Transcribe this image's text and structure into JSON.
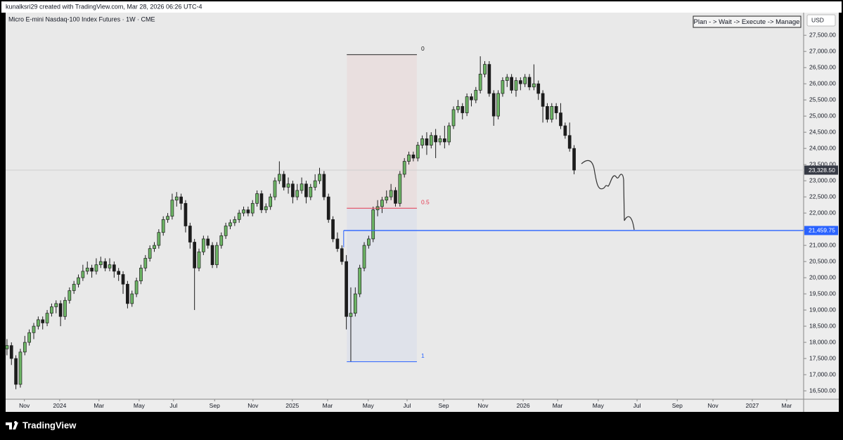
{
  "chart_data": {
    "type": "candlestick",
    "header": "kunalksri29 created with TradingView.com, Mar 28, 2026 06:26 UTC-4",
    "title": "Micro E-mini Nasdaq-100 Index Futures · 1W · CME",
    "note": "Plan - > Wait -> Execute -> Manage",
    "currency": "USD",
    "watermark": "TradingView",
    "up_color": "#6db565",
    "down_color": "#1c1c1c",
    "ylim": [
      16240,
      28200
    ],
    "xlim": [
      -0.3,
      178.4
    ],
    "yticks": [
      {
        "value": 16500,
        "label": "16,500.00"
      },
      {
        "value": 17000,
        "label": "17,000.00"
      },
      {
        "value": 17500,
        "label": "17,500.00"
      },
      {
        "value": 18000,
        "label": "18,000.00"
      },
      {
        "value": 18500,
        "label": "18,500.00"
      },
      {
        "value": 19000,
        "label": "19,000.00"
      },
      {
        "value": 19500,
        "label": "19,500.00"
      },
      {
        "value": 20000,
        "label": "20,000.00"
      },
      {
        "value": 20500,
        "label": "20,500.00"
      },
      {
        "value": 21000,
        "label": "21,000.00"
      },
      {
        "value": 21500,
        "label": "21,500.00"
      },
      {
        "value": 22000,
        "label": "22,000.00"
      },
      {
        "value": 22500,
        "label": "22,500.00"
      },
      {
        "value": 23000,
        "label": "23,000.00"
      },
      {
        "value": 23500,
        "label": "23,500.00"
      },
      {
        "value": 24000,
        "label": "24,000.00"
      },
      {
        "value": 24500,
        "label": "24,500.00"
      },
      {
        "value": 25000,
        "label": "25,000.00"
      },
      {
        "value": 25500,
        "label": "25,500.00"
      },
      {
        "value": 26000,
        "label": "26,000.00"
      },
      {
        "value": 26500,
        "label": "26,500.00"
      },
      {
        "value": 27000,
        "label": "27,000.00"
      },
      {
        "value": 27500,
        "label": "27,500.00"
      }
    ],
    "xticks": [
      {
        "value": 3.9,
        "label": "Nov"
      },
      {
        "value": 11.8,
        "label": "2024"
      },
      {
        "value": 20.6,
        "label": "Mar"
      },
      {
        "value": 29.6,
        "label": "May"
      },
      {
        "value": 37.3,
        "label": "Jul"
      },
      {
        "value": 46.5,
        "label": "Sep"
      },
      {
        "value": 55.1,
        "label": "Nov"
      },
      {
        "value": 63.9,
        "label": "2025"
      },
      {
        "value": 71.8,
        "label": "Mar"
      },
      {
        "value": 80.9,
        "label": "May"
      },
      {
        "value": 89.6,
        "label": "Jul"
      },
      {
        "value": 97.8,
        "label": "Sep"
      },
      {
        "value": 106.6,
        "label": "Nov"
      },
      {
        "value": 115.6,
        "label": "2026"
      },
      {
        "value": 123.3,
        "label": "Mar"
      },
      {
        "value": 132.4,
        "label": "May"
      },
      {
        "value": 141.1,
        "label": "Jul"
      },
      {
        "value": 150.1,
        "label": "Sep"
      },
      {
        "value": 158.1,
        "label": "Nov"
      },
      {
        "value": 166.9,
        "label": "2027"
      },
      {
        "value": 174.6,
        "label": "Mar"
      }
    ],
    "last_price": {
      "value": 23328.5,
      "label": "23,328.50"
    },
    "level": {
      "value": 21459.75,
      "label": "21,459.75",
      "start": 75.4,
      "color": "#2962ff"
    },
    "fib": {
      "high": 26900,
      "low": 17400,
      "start": 76.1,
      "end": 91.8,
      "levels": [
        0,
        0.5,
        1
      ],
      "colors": [
        "#222222",
        "#e53950",
        "#2962ff"
      ]
    },
    "ohlc": [
      [
        17800,
        18100,
        17600,
        17900
      ],
      [
        17900,
        18000,
        17300,
        17500
      ],
      [
        17500,
        17600,
        16550,
        16700
      ],
      [
        16700,
        17800,
        16600,
        17700
      ],
      [
        17700,
        18200,
        17600,
        18000
      ],
      [
        18000,
        18400,
        17900,
        18300
      ],
      [
        18300,
        18600,
        18100,
        18500
      ],
      [
        18500,
        18800,
        18400,
        18700
      ],
      [
        18700,
        18800,
        18400,
        18600
      ],
      [
        18600,
        19000,
        18500,
        18900
      ],
      [
        18900,
        19200,
        18800,
        19100
      ],
      [
        19100,
        19300,
        18900,
        19200
      ],
      [
        19200,
        19300,
        18500,
        18800
      ],
      [
        18800,
        19400,
        18700,
        19300
      ],
      [
        19300,
        19700,
        19200,
        19600
      ],
      [
        19600,
        19900,
        19500,
        19800
      ],
      [
        19800,
        20100,
        19700,
        20000
      ],
      [
        20000,
        20400,
        19900,
        20200
      ],
      [
        20200,
        20500,
        20100,
        20300
      ],
      [
        20300,
        20400,
        20000,
        20200
      ],
      [
        20200,
        20600,
        20100,
        20400
      ],
      [
        20400,
        20650,
        20300,
        20500
      ],
      [
        20500,
        20600,
        20200,
        20300
      ],
      [
        20300,
        20600,
        20200,
        20400
      ],
      [
        20400,
        20500,
        20000,
        20200
      ],
      [
        20200,
        20300,
        19900,
        20100
      ],
      [
        20100,
        20200,
        19500,
        19800
      ],
      [
        19800,
        19900,
        19050,
        19200
      ],
      [
        19200,
        19600,
        19100,
        19500
      ],
      [
        19500,
        20000,
        19400,
        19900
      ],
      [
        19900,
        20400,
        19800,
        20300
      ],
      [
        20300,
        20700,
        20200,
        20600
      ],
      [
        20600,
        21000,
        20500,
        20900
      ],
      [
        20900,
        21100,
        20800,
        21000
      ],
      [
        21000,
        21500,
        20900,
        21400
      ],
      [
        21400,
        21900,
        21300,
        21800
      ],
      [
        21800,
        22000,
        21700,
        21900
      ],
      [
        21900,
        22600,
        21800,
        22400
      ],
      [
        22400,
        22650,
        22200,
        22500
      ],
      [
        22500,
        22600,
        22100,
        22300
      ],
      [
        22300,
        22400,
        21400,
        21600
      ],
      [
        21600,
        21700,
        20900,
        21100
      ],
      [
        21100,
        21200,
        19000,
        20300
      ],
      [
        20300,
        20900,
        20200,
        20800
      ],
      [
        20800,
        21300,
        20700,
        21200
      ],
      [
        21200,
        21300,
        20900,
        21000
      ],
      [
        21000,
        21100,
        20300,
        20400
      ],
      [
        20400,
        21100,
        20300,
        21000
      ],
      [
        21000,
        21400,
        20900,
        21300
      ],
      [
        21300,
        21700,
        21200,
        21600
      ],
      [
        21600,
        21800,
        21500,
        21700
      ],
      [
        21700,
        21900,
        21600,
        21800
      ],
      [
        21800,
        22100,
        21700,
        22000
      ],
      [
        22000,
        22200,
        21900,
        22100
      ],
      [
        22100,
        22200,
        21900,
        22000
      ],
      [
        22000,
        22400,
        21900,
        22300
      ],
      [
        22300,
        22700,
        22200,
        22600
      ],
      [
        22600,
        22700,
        22000,
        22100
      ],
      [
        22100,
        22300,
        22000,
        22200
      ],
      [
        22200,
        22600,
        22100,
        22500
      ],
      [
        22500,
        23100,
        22400,
        23000
      ],
      [
        23000,
        23600,
        22900,
        23200
      ],
      [
        23200,
        23300,
        22700,
        22800
      ],
      [
        22800,
        23100,
        22600,
        22900
      ],
      [
        22900,
        23000,
        22300,
        22500
      ],
      [
        22500,
        22900,
        22400,
        22700
      ],
      [
        22700,
        23100,
        22600,
        22900
      ],
      [
        22900,
        23000,
        22300,
        22500
      ],
      [
        22500,
        22900,
        22400,
        22800
      ],
      [
        22800,
        23200,
        22700,
        23000
      ],
      [
        23000,
        23400,
        22900,
        23200
      ],
      [
        23200,
        23300,
        22400,
        22500
      ],
      [
        22500,
        22600,
        21700,
        21800
      ],
      [
        21800,
        21900,
        21100,
        21200
      ],
      [
        21200,
        21400,
        20800,
        20900
      ],
      [
        20900,
        21000,
        20400,
        20500
      ],
      [
        20500,
        20700,
        18400,
        18800
      ],
      [
        18800,
        19700,
        17400,
        18900
      ],
      [
        18900,
        19700,
        18800,
        19500
      ],
      [
        19500,
        20400,
        19400,
        20300
      ],
      [
        20300,
        21100,
        20200,
        21000
      ],
      [
        21000,
        21300,
        20900,
        21200
      ],
      [
        21200,
        22200,
        21100,
        22100
      ],
      [
        22100,
        22400,
        21900,
        22200
      ],
      [
        22200,
        22500,
        22000,
        22400
      ],
      [
        22400,
        22700,
        22300,
        22500
      ],
      [
        22500,
        22900,
        22400,
        22700
      ],
      [
        22700,
        22800,
        22200,
        22300
      ],
      [
        22300,
        23300,
        22200,
        23200
      ],
      [
        23200,
        23700,
        23100,
        23600
      ],
      [
        23600,
        23900,
        23500,
        23800
      ],
      [
        23800,
        23900,
        23600,
        23700
      ],
      [
        23700,
        24200,
        23600,
        24100
      ],
      [
        24100,
        24400,
        24000,
        24300
      ],
      [
        24300,
        24500,
        23800,
        24100
      ],
      [
        24100,
        24500,
        24000,
        24400
      ],
      [
        24400,
        24600,
        23700,
        24200
      ],
      [
        24200,
        24400,
        24100,
        24300
      ],
      [
        24300,
        24700,
        24000,
        24200
      ],
      [
        24200,
        24800,
        24100,
        24700
      ],
      [
        24700,
        25300,
        24600,
        25200
      ],
      [
        25200,
        25500,
        25100,
        25300
      ],
      [
        25300,
        25400,
        24900,
        25100
      ],
      [
        25100,
        25700,
        25000,
        25600
      ],
      [
        25600,
        25700,
        25300,
        25500
      ],
      [
        25500,
        25900,
        25400,
        25800
      ],
      [
        25800,
        26850,
        25700,
        26300
      ],
      [
        26300,
        26700,
        26200,
        26600
      ],
      [
        26600,
        26700,
        25600,
        25700
      ],
      [
        25700,
        25800,
        24700,
        25000
      ],
      [
        25000,
        25800,
        24900,
        25700
      ],
      [
        25700,
        26200,
        25600,
        26100
      ],
      [
        26100,
        26300,
        25900,
        26200
      ],
      [
        26200,
        26300,
        25700,
        25800
      ],
      [
        25800,
        26200,
        25600,
        26100
      ],
      [
        26100,
        26200,
        25800,
        26000
      ],
      [
        26000,
        26300,
        25900,
        26200
      ],
      [
        26200,
        26300,
        25800,
        25900
      ],
      [
        25900,
        26600,
        25800,
        26000
      ],
      [
        26000,
        26100,
        25500,
        25700
      ],
      [
        25700,
        25800,
        24800,
        25300
      ],
      [
        25300,
        25400,
        24800,
        24900
      ],
      [
        24900,
        25400,
        24800,
        25300
      ],
      [
        25300,
        25400,
        24900,
        25100
      ],
      [
        25100,
        25400,
        24600,
        24700
      ],
      [
        24700,
        24800,
        24300,
        24400
      ],
      [
        24400,
        24800,
        23900,
        24000
      ],
      [
        24000,
        24100,
        23200,
        23328.5
      ]
    ]
  }
}
